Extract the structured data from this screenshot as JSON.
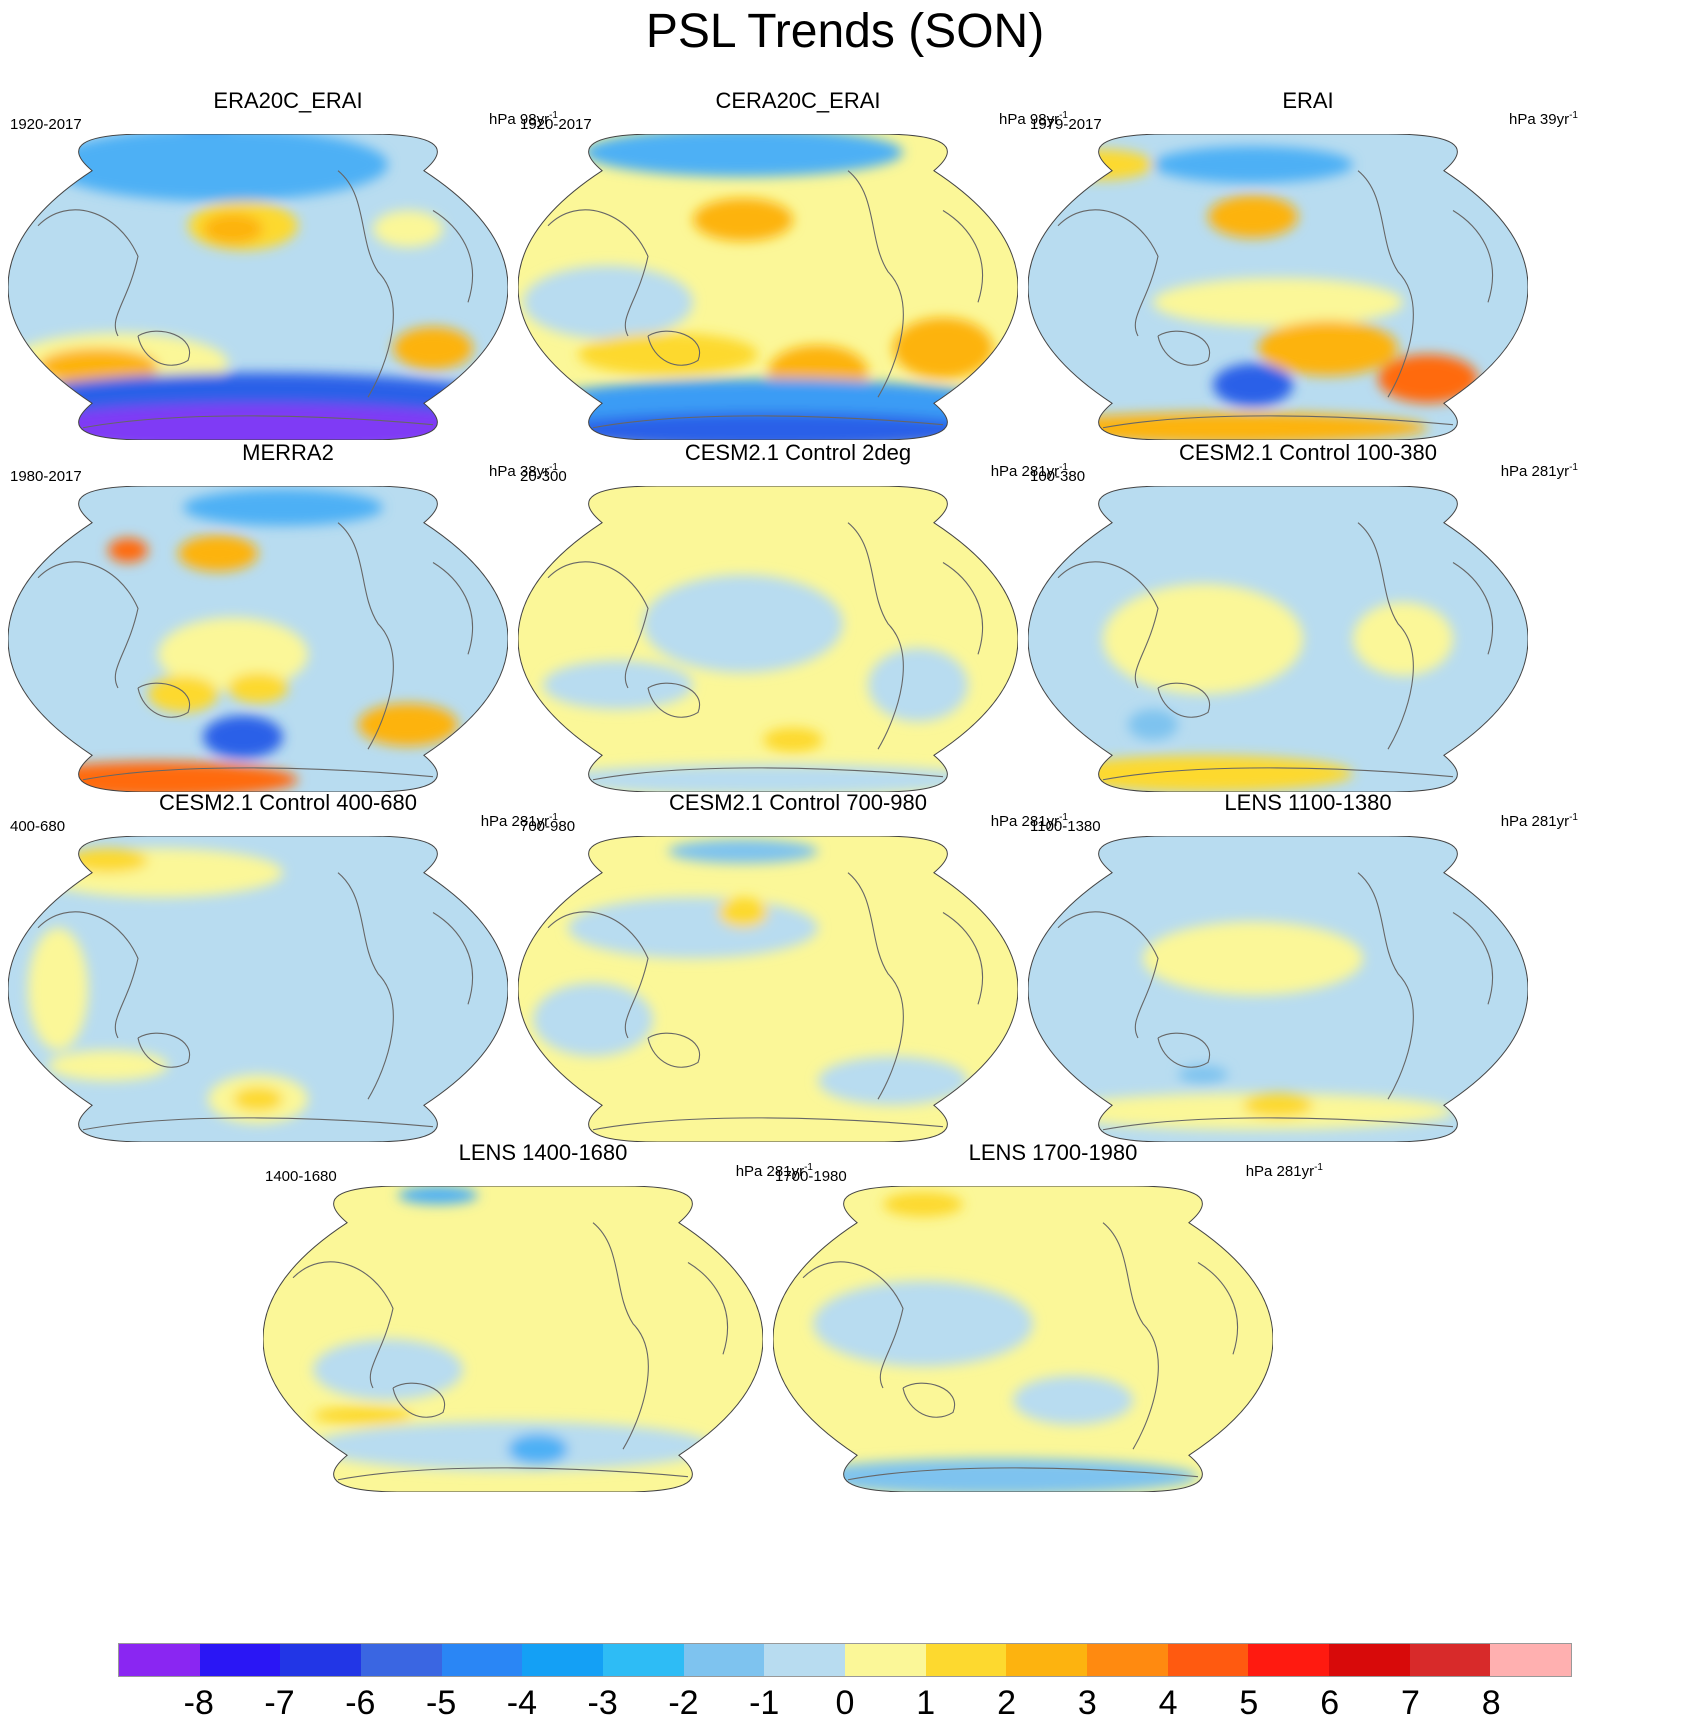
{
  "figure": {
    "title": "PSL Trends (SON)"
  },
  "panels": [
    {
      "title": "ERA20C_ERAI",
      "years": "1920-2017",
      "units_prefix": "hPa 98yr",
      "units_sup": "-1",
      "ocean_color": "#b8dcf0",
      "blobs": [
        {
          "u": 0.4,
          "v": 0.04,
          "a": 0.1,
          "b": 0.07,
          "color": "#2222ee"
        },
        {
          "u": 0.42,
          "v": 0.1,
          "a": 0.34,
          "b": 0.12,
          "color": "#4db0f5"
        },
        {
          "u": 0.47,
          "v": 0.3,
          "a": 0.11,
          "b": 0.08,
          "color": "#fdd92f"
        },
        {
          "u": 0.45,
          "v": 0.31,
          "a": 0.06,
          "b": 0.05,
          "color": "#fdb30f"
        },
        {
          "u": 0.8,
          "v": 0.31,
          "a": 0.07,
          "b": 0.06,
          "color": "#fbf798"
        },
        {
          "u": 0.22,
          "v": 0.75,
          "a": 0.22,
          "b": 0.1,
          "color": "#fbf798"
        },
        {
          "u": 0.18,
          "v": 0.76,
          "a": 0.12,
          "b": 0.06,
          "color": "#fdb30f"
        },
        {
          "u": 0.85,
          "v": 0.7,
          "a": 0.08,
          "b": 0.07,
          "color": "#fdb30f"
        },
        {
          "u": 0.5,
          "v": 0.88,
          "a": 0.52,
          "b": 0.1,
          "color": "#2a60e8"
        },
        {
          "u": 0.5,
          "v": 0.96,
          "a": 0.5,
          "b": 0.08,
          "color": "#7f3af5"
        }
      ]
    },
    {
      "title": "CERA20C_ERAI",
      "years": "1920-2017",
      "units_prefix": "hPa 98yr",
      "units_sup": "-1",
      "ocean_color": "#fbf798",
      "blobs": [
        {
          "u": 0.45,
          "v": 0.06,
          "a": 0.32,
          "b": 0.08,
          "color": "#4db0f5"
        },
        {
          "u": 0.45,
          "v": 0.28,
          "a": 0.1,
          "b": 0.07,
          "color": "#fdb30f"
        },
        {
          "u": 0.18,
          "v": 0.55,
          "a": 0.17,
          "b": 0.12,
          "color": "#b8dcf0"
        },
        {
          "u": 0.6,
          "v": 0.78,
          "a": 0.1,
          "b": 0.09,
          "color": "#fdb30f"
        },
        {
          "u": 0.85,
          "v": 0.7,
          "a": 0.1,
          "b": 0.1,
          "color": "#fdb30f"
        },
        {
          "u": 0.3,
          "v": 0.72,
          "a": 0.18,
          "b": 0.07,
          "color": "#fdd92f"
        },
        {
          "u": 0.5,
          "v": 0.9,
          "a": 0.5,
          "b": 0.1,
          "color": "#3a9cf5"
        },
        {
          "u": 0.5,
          "v": 0.97,
          "a": 0.45,
          "b": 0.06,
          "color": "#2a60e8"
        }
      ]
    },
    {
      "title": "ERAI",
      "years": "1979-2017",
      "units_prefix": "hPa 39yr",
      "units_sup": "-1",
      "ocean_color": "#b8dcf0",
      "blobs": [
        {
          "u": 0.45,
          "v": 0.1,
          "a": 0.2,
          "b": 0.06,
          "color": "#4db0f5"
        },
        {
          "u": 0.45,
          "v": 0.27,
          "a": 0.09,
          "b": 0.07,
          "color": "#fdb30f"
        },
        {
          "u": 0.15,
          "v": 0.1,
          "a": 0.1,
          "b": 0.05,
          "color": "#fdd92f"
        },
        {
          "u": 0.5,
          "v": 0.55,
          "a": 0.25,
          "b": 0.08,
          "color": "#fbf798"
        },
        {
          "u": 0.6,
          "v": 0.7,
          "a": 0.14,
          "b": 0.09,
          "color": "#fdb30f"
        },
        {
          "u": 0.45,
          "v": 0.82,
          "a": 0.08,
          "b": 0.07,
          "color": "#2a60e8"
        },
        {
          "u": 0.8,
          "v": 0.8,
          "a": 0.1,
          "b": 0.08,
          "color": "#ff6a10"
        },
        {
          "u": 0.4,
          "v": 0.96,
          "a": 0.4,
          "b": 0.05,
          "color": "#fdb30f"
        }
      ]
    },
    {
      "title": "MERRA2",
      "years": "1980-2017",
      "units_prefix": "hPa 38yr",
      "units_sup": "-1",
      "ocean_color": "#b8dcf0",
      "blobs": [
        {
          "u": 0.55,
          "v": 0.07,
          "a": 0.2,
          "b": 0.06,
          "color": "#4db0f5"
        },
        {
          "u": 0.42,
          "v": 0.22,
          "a": 0.08,
          "b": 0.06,
          "color": "#fdb30f"
        },
        {
          "u": 0.24,
          "v": 0.21,
          "a": 0.04,
          "b": 0.04,
          "color": "#ff6a10"
        },
        {
          "u": 0.45,
          "v": 0.55,
          "a": 0.15,
          "b": 0.12,
          "color": "#fbf798"
        },
        {
          "u": 0.5,
          "v": 0.66,
          "a": 0.06,
          "b": 0.05,
          "color": "#fdd92f"
        },
        {
          "u": 0.35,
          "v": 0.68,
          "a": 0.07,
          "b": 0.06,
          "color": "#fdd92f"
        },
        {
          "u": 0.47,
          "v": 0.82,
          "a": 0.08,
          "b": 0.07,
          "color": "#2a60e8"
        },
        {
          "u": 0.8,
          "v": 0.78,
          "a": 0.1,
          "b": 0.07,
          "color": "#fdb30f"
        },
        {
          "u": 0.3,
          "v": 0.96,
          "a": 0.28,
          "b": 0.06,
          "color": "#ff6a10"
        }
      ]
    },
    {
      "title": "CESM2.1 Control 2deg",
      "years": "20-300",
      "units_prefix": "hPa 281yr",
      "units_sup": "-1",
      "ocean_color": "#fbf798",
      "blobs": [
        {
          "u": 0.45,
          "v": 0.45,
          "a": 0.2,
          "b": 0.16,
          "color": "#b8dcf0"
        },
        {
          "u": 0.2,
          "v": 0.65,
          "a": 0.15,
          "b": 0.08,
          "color": "#b8dcf0"
        },
        {
          "u": 0.8,
          "v": 0.65,
          "a": 0.1,
          "b": 0.12,
          "color": "#b8dcf0"
        },
        {
          "u": 0.55,
          "v": 0.83,
          "a": 0.06,
          "b": 0.04,
          "color": "#fdd92f"
        },
        {
          "u": 0.5,
          "v": 0.96,
          "a": 0.45,
          "b": 0.05,
          "color": "#b8dcf0"
        }
      ]
    },
    {
      "title": "CESM2.1 Control 100-380",
      "years": "100-380",
      "units_prefix": "hPa 281yr",
      "units_sup": "-1",
      "ocean_color": "#b8dcf0",
      "blobs": [
        {
          "u": 0.35,
          "v": 0.5,
          "a": 0.2,
          "b": 0.18,
          "color": "#fbf798"
        },
        {
          "u": 0.75,
          "v": 0.5,
          "a": 0.1,
          "b": 0.12,
          "color": "#fbf798"
        },
        {
          "u": 0.25,
          "v": 0.78,
          "a": 0.05,
          "b": 0.05,
          "color": "#7ec3ef"
        },
        {
          "u": 0.35,
          "v": 0.94,
          "a": 0.3,
          "b": 0.06,
          "color": "#fdd92f"
        }
      ]
    },
    {
      "title": "CESM2.1 Control 400-680",
      "years": "400-680",
      "units_prefix": "hPa 281yr",
      "units_sup": "-1",
      "ocean_color": "#b8dcf0",
      "blobs": [
        {
          "u": 0.3,
          "v": 0.12,
          "a": 0.25,
          "b": 0.08,
          "color": "#fbf798"
        },
        {
          "u": 0.2,
          "v": 0.08,
          "a": 0.08,
          "b": 0.04,
          "color": "#fdd92f"
        },
        {
          "u": 0.1,
          "v": 0.5,
          "a": 0.06,
          "b": 0.2,
          "color": "#fbf798"
        },
        {
          "u": 0.5,
          "v": 0.86,
          "a": 0.1,
          "b": 0.08,
          "color": "#fbf798"
        },
        {
          "u": 0.5,
          "v": 0.86,
          "a": 0.05,
          "b": 0.04,
          "color": "#fdd92f"
        },
        {
          "u": 0.2,
          "v": 0.75,
          "a": 0.12,
          "b": 0.05,
          "color": "#fbf798"
        }
      ]
    },
    {
      "title": "CESM2.1 Control 700-980",
      "years": "700-980",
      "units_prefix": "hPa 281yr",
      "units_sup": "-1",
      "ocean_color": "#fbf798",
      "blobs": [
        {
          "u": 0.35,
          "v": 0.3,
          "a": 0.25,
          "b": 0.1,
          "color": "#b8dcf0"
        },
        {
          "u": 0.45,
          "v": 0.25,
          "a": 0.05,
          "b": 0.05,
          "color": "#fdd92f"
        },
        {
          "u": 0.15,
          "v": 0.6,
          "a": 0.12,
          "b": 0.12,
          "color": "#b8dcf0"
        },
        {
          "u": 0.75,
          "v": 0.8,
          "a": 0.15,
          "b": 0.08,
          "color": "#b8dcf0"
        },
        {
          "u": 0.45,
          "v": 0.05,
          "a": 0.15,
          "b": 0.04,
          "color": "#7ec3ef"
        }
      ]
    },
    {
      "title": "LENS 1100-1380",
      "years": "1100-1380",
      "units_prefix": "hPa 281yr",
      "units_sup": "-1",
      "ocean_color": "#b8dcf0",
      "blobs": [
        {
          "u": 0.45,
          "v": 0.4,
          "a": 0.22,
          "b": 0.12,
          "color": "#fbf798"
        },
        {
          "u": 0.45,
          "v": 0.9,
          "a": 0.4,
          "b": 0.06,
          "color": "#fbf798"
        },
        {
          "u": 0.5,
          "v": 0.88,
          "a": 0.07,
          "b": 0.04,
          "color": "#fdd92f"
        },
        {
          "u": 0.35,
          "v": 0.78,
          "a": 0.05,
          "b": 0.03,
          "color": "#7ec3ef"
        }
      ]
    },
    {
      "title": "LENS 1400-1680",
      "years": "1400-1680",
      "units_prefix": "hPa 281yr",
      "units_sup": "-1",
      "ocean_color": "#fbf798",
      "blobs": [
        {
          "u": 0.25,
          "v": 0.6,
          "a": 0.15,
          "b": 0.1,
          "color": "#b8dcf0"
        },
        {
          "u": 0.5,
          "v": 0.85,
          "a": 0.4,
          "b": 0.08,
          "color": "#b8dcf0"
        },
        {
          "u": 0.55,
          "v": 0.86,
          "a": 0.06,
          "b": 0.05,
          "color": "#4db0f5"
        },
        {
          "u": 0.2,
          "v": 0.75,
          "a": 0.1,
          "b": 0.03,
          "color": "#fdd92f"
        },
        {
          "u": 0.35,
          "v": 0.03,
          "a": 0.08,
          "b": 0.03,
          "color": "#4db0f5"
        }
      ]
    },
    {
      "title": "LENS 1700-1980",
      "years": "1700-1980",
      "units_prefix": "hPa 281yr",
      "units_sup": "-1",
      "ocean_color": "#fbf798",
      "blobs": [
        {
          "u": 0.3,
          "v": 0.45,
          "a": 0.22,
          "b": 0.14,
          "color": "#b8dcf0"
        },
        {
          "u": 0.6,
          "v": 0.7,
          "a": 0.12,
          "b": 0.08,
          "color": "#b8dcf0"
        },
        {
          "u": 0.45,
          "v": 0.95,
          "a": 0.4,
          "b": 0.06,
          "color": "#7ec3ef"
        },
        {
          "u": 0.3,
          "v": 0.06,
          "a": 0.08,
          "b": 0.04,
          "color": "#fdd92f"
        }
      ]
    }
  ],
  "colorbar": {
    "colors": [
      "#8a26f2",
      "#2a16f5",
      "#2236e6",
      "#3a66e2",
      "#2a86f5",
      "#14a0f5",
      "#2ebcf5",
      "#7ec3ef",
      "#b8dcf0",
      "#fbf798",
      "#fdd92f",
      "#fdb30f",
      "#ff8a10",
      "#ff5a10",
      "#ff1a10",
      "#d80a0a",
      "#d82a2a",
      "#ffb0b0"
    ],
    "labels": [
      "-8",
      "-7",
      "-6",
      "-5",
      "-4",
      "-3",
      "-2",
      "-1",
      "0",
      "1",
      "2",
      "3",
      "4",
      "5",
      "6",
      "7",
      "8"
    ]
  }
}
